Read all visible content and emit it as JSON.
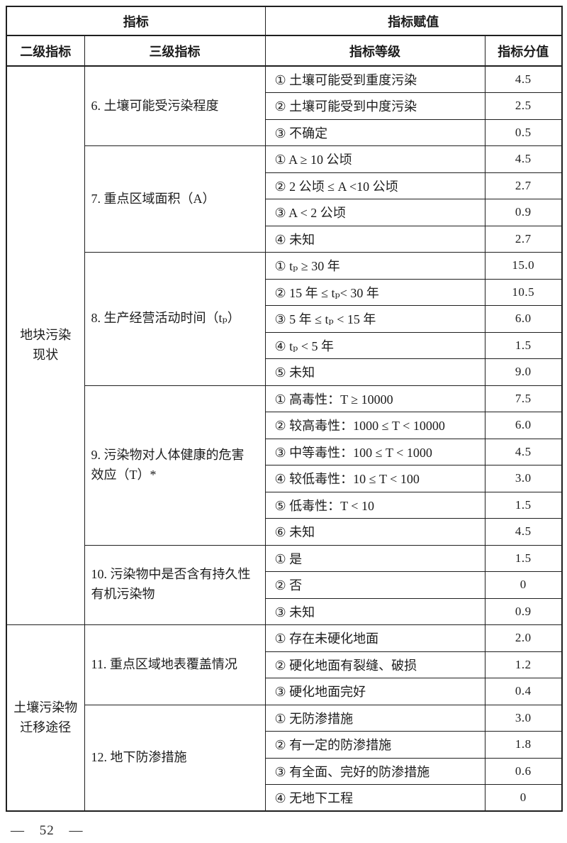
{
  "header": {
    "indicator": "指标",
    "assignment": "指标赋值",
    "secondary": "二级指标",
    "tertiary": "三级指标",
    "grade": "指标等级",
    "score": "指标分值"
  },
  "groups": [
    {
      "name": "地块污染\n现状",
      "indicators": [
        {
          "label": "6. 土壤可能受污染程度",
          "options": [
            {
              "text": "① 土壤可能受到重度污染",
              "score": "4.5"
            },
            {
              "text": "② 土壤可能受到中度污染",
              "score": "2.5"
            },
            {
              "text": "③ 不确定",
              "score": "0.5"
            }
          ]
        },
        {
          "label": "7. 重点区域面积（A）",
          "options": [
            {
              "text": "① A ≥ 10 公顷",
              "score": "4.5"
            },
            {
              "text": "② 2 公顷 ≤ A <10 公顷",
              "score": "2.7"
            },
            {
              "text": "③ A < 2 公顷",
              "score": "0.9"
            },
            {
              "text": "④ 未知",
              "score": "2.7"
            }
          ]
        },
        {
          "label": "8. 生产经营活动时间（tₚ）",
          "options": [
            {
              "text": "① tₚ ≥ 30 年",
              "score": "15.0"
            },
            {
              "text": "② 15 年 ≤ tₚ< 30 年",
              "score": "10.5"
            },
            {
              "text": "③ 5 年 ≤ tₚ < 15 年",
              "score": "6.0"
            },
            {
              "text": "④ tₚ < 5 年",
              "score": "1.5"
            },
            {
              "text": "⑤ 未知",
              "score": "9.0"
            }
          ]
        },
        {
          "label": "9. 污染物对人体健康的危害\n效应（T）*",
          "options": [
            {
              "text": "① 高毒性：T ≥ 10000",
              "score": "7.5"
            },
            {
              "text": "② 较高毒性：1000 ≤ T < 10000",
              "score": "6.0"
            },
            {
              "text": "③ 中等毒性：100 ≤ T < 1000",
              "score": "4.5"
            },
            {
              "text": "④ 较低毒性：10 ≤ T < 100",
              "score": "3.0"
            },
            {
              "text": "⑤ 低毒性：T < 10",
              "score": "1.5"
            },
            {
              "text": "⑥ 未知",
              "score": "4.5"
            }
          ]
        },
        {
          "label": "10. 污染物中是否含有持久性\n有机污染物",
          "options": [
            {
              "text": "① 是",
              "score": "1.5"
            },
            {
              "text": "② 否",
              "score": "0"
            },
            {
              "text": "③ 未知",
              "score": "0.9"
            }
          ]
        }
      ]
    },
    {
      "name": "土壤污染物\n迁移途径",
      "indicators": [
        {
          "label": "11. 重点区域地表覆盖情况",
          "options": [
            {
              "text": "① 存在未硬化地面",
              "score": "2.0"
            },
            {
              "text": "② 硬化地面有裂缝、破损",
              "score": "1.2"
            },
            {
              "text": "③ 硬化地面完好",
              "score": "0.4"
            }
          ]
        },
        {
          "label": "12. 地下防渗措施",
          "options": [
            {
              "text": "① 无防渗措施",
              "score": "3.0"
            },
            {
              "text": "② 有一定的防渗措施",
              "score": "1.8"
            },
            {
              "text": "③ 有全面、完好的防渗措施",
              "score": "0.6"
            },
            {
              "text": "④ 无地下工程",
              "score": "0"
            }
          ]
        }
      ]
    }
  ],
  "page": {
    "footer_page_number": "— 52 —"
  }
}
